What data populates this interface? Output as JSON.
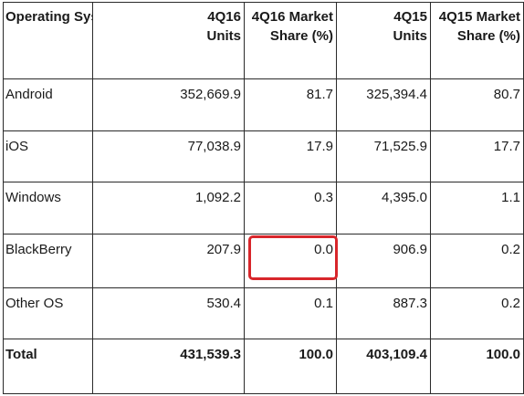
{
  "table": {
    "headers": [
      {
        "line1": "Operating System",
        "line2": ""
      },
      {
        "line1": "4Q16",
        "line2": "Units"
      },
      {
        "line1": "4Q16 Market",
        "line2": "Share (%)"
      },
      {
        "line1": "4Q15",
        "line2": "Units"
      },
      {
        "line1": "4Q15 Market",
        "line2": "Share (%)"
      }
    ],
    "rows": [
      [
        "Android",
        "352,669.9",
        "81.7",
        "325,394.4",
        "80.7"
      ],
      [
        "iOS",
        "77,038.9",
        "17.9",
        "71,525.9",
        "17.7"
      ],
      [
        "Windows",
        "1,092.2",
        "0.3",
        "4,395.0",
        "1.1"
      ],
      [
        "BlackBerry",
        "207.9",
        "0.0",
        "906.9",
        "0.2"
      ],
      [
        "Other OS",
        "530.4",
        "0.1",
        "887.3",
        "0.2"
      ],
      [
        "Total",
        "431,539.3",
        "100.0",
        "403,109.4",
        "100.0"
      ]
    ]
  },
  "highlight": {
    "row_label": "BlackBerry",
    "column": "4Q16 Market Share (%)",
    "color": "#d8262b"
  },
  "chart_data": {
    "type": "table",
    "columns": [
      "Operating System",
      "4Q16 Units",
      "4Q16 Market Share (%)",
      "4Q15 Units",
      "4Q15 Market Share (%)"
    ],
    "rows": [
      {
        "os": "Android",
        "units_4q16": 352669.9,
        "share_4q16": 81.7,
        "units_4q15": 325394.4,
        "share_4q15": 80.7
      },
      {
        "os": "iOS",
        "units_4q16": 77038.9,
        "share_4q16": 17.9,
        "units_4q15": 71525.9,
        "share_4q15": 17.7
      },
      {
        "os": "Windows",
        "units_4q16": 1092.2,
        "share_4q16": 0.3,
        "units_4q15": 4395.0,
        "share_4q15": 1.1
      },
      {
        "os": "BlackBerry",
        "units_4q16": 207.9,
        "share_4q16": 0.0,
        "units_4q15": 906.9,
        "share_4q15": 0.2
      },
      {
        "os": "Other OS",
        "units_4q16": 530.4,
        "share_4q16": 0.1,
        "units_4q15": 887.3,
        "share_4q15": 0.2
      },
      {
        "os": "Total",
        "units_4q16": 431539.3,
        "share_4q16": 100.0,
        "units_4q15": 403109.4,
        "share_4q15": 100.0
      }
    ]
  }
}
